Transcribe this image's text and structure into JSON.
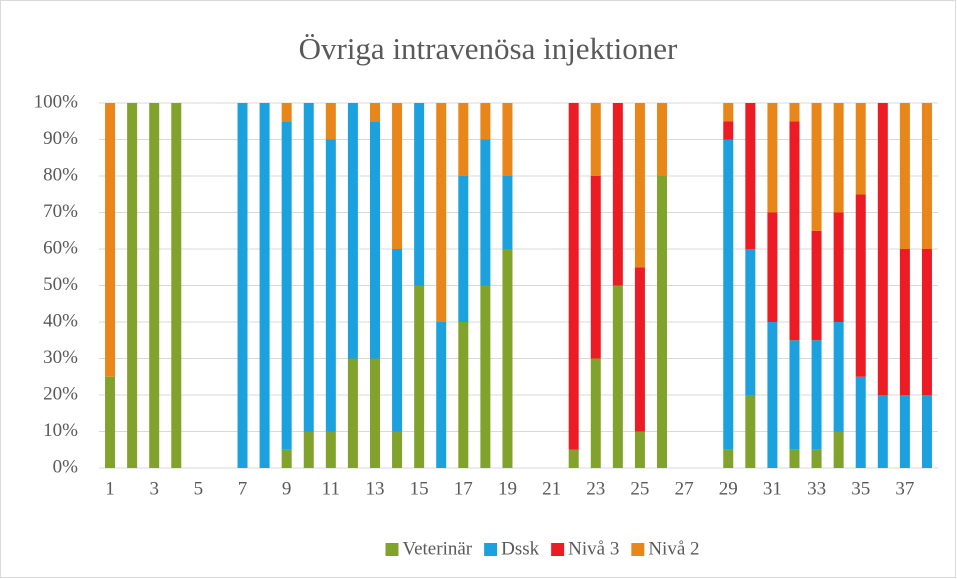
{
  "chart_data": {
    "type": "bar",
    "stacked": true,
    "title": "Övriga intravenösa injektioner",
    "categories": [
      1,
      null,
      3,
      null,
      5,
      null,
      7,
      null,
      9,
      null,
      11,
      null,
      13,
      null,
      15,
      null,
      17,
      null,
      19,
      null,
      21,
      null,
      23,
      null,
      25,
      null,
      27,
      null,
      29,
      null,
      31,
      null,
      33,
      null,
      35,
      null,
      37,
      null
    ],
    "series": [
      {
        "name": "Veterinär",
        "color": "#82a32b",
        "values": [
          25,
          100,
          100,
          100,
          0,
          0,
          0,
          0,
          5,
          10,
          10,
          30,
          30,
          10,
          50,
          0,
          40,
          50,
          60,
          0,
          0,
          5,
          30,
          50,
          10,
          80,
          0,
          0,
          5,
          20,
          0,
          5,
          5,
          10,
          0,
          0,
          0,
          0
        ]
      },
      {
        "name": "Dssk",
        "color": "#1ba1dd",
        "values": [
          0,
          0,
          0,
          0,
          0,
          0,
          100,
          100,
          90,
          90,
          80,
          70,
          65,
          50,
          50,
          40,
          40,
          40,
          20,
          0,
          0,
          0,
          0,
          0,
          0,
          0,
          0,
          0,
          85,
          40,
          40,
          30,
          30,
          30,
          25,
          20,
          20,
          20
        ]
      },
      {
        "name": "Nivå 3",
        "color": "#ed1c24",
        "values": [
          0,
          0,
          0,
          0,
          0,
          0,
          0,
          0,
          0,
          0,
          0,
          0,
          0,
          0,
          0,
          0,
          0,
          0,
          0,
          0,
          0,
          95,
          50,
          50,
          45,
          0,
          0,
          0,
          5,
          40,
          30,
          60,
          30,
          30,
          50,
          80,
          40,
          40
        ]
      },
      {
        "name": "Nivå 2",
        "color": "#e8861a",
        "values": [
          75,
          0,
          0,
          0,
          0,
          0,
          0,
          0,
          5,
          0,
          10,
          0,
          5,
          40,
          0,
          60,
          20,
          10,
          20,
          0,
          0,
          0,
          20,
          0,
          45,
          20,
          0,
          0,
          5,
          0,
          30,
          5,
          35,
          30,
          25,
          0,
          40,
          40
        ]
      }
    ],
    "ylim": [
      0,
      100
    ],
    "yticks": [
      {
        "value": 0,
        "label": "0%"
      },
      {
        "value": 10,
        "label": "10%"
      },
      {
        "value": 20,
        "label": "20%"
      },
      {
        "value": 30,
        "label": "30%"
      },
      {
        "value": 40,
        "label": "40%"
      },
      {
        "value": 50,
        "label": "50%"
      },
      {
        "value": 60,
        "label": "60%"
      },
      {
        "value": 70,
        "label": "70%"
      },
      {
        "value": 80,
        "label": "80%"
      },
      {
        "value": 90,
        "label": "90%"
      },
      {
        "value": 100,
        "label": "100%"
      }
    ],
    "grid": true,
    "legend": "bottom"
  }
}
